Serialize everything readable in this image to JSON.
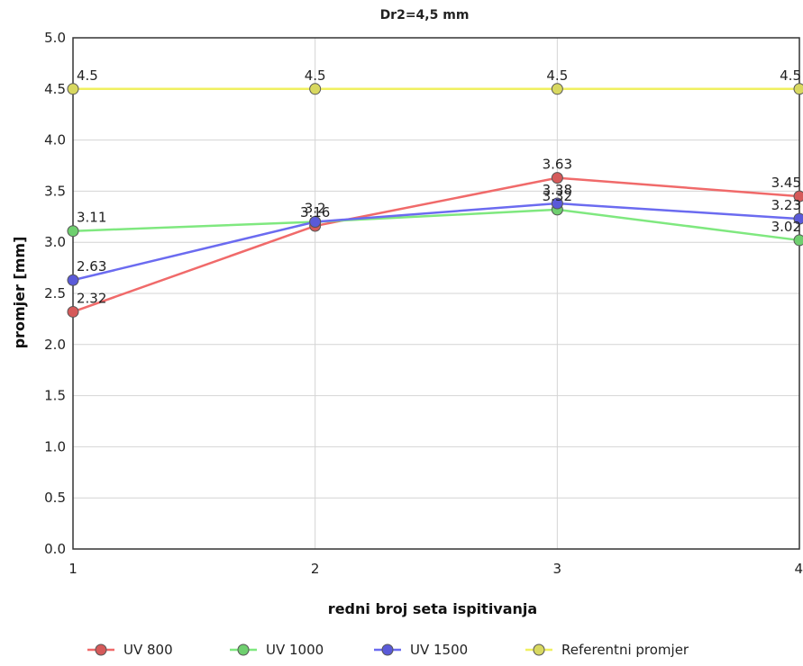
{
  "chart_data": {
    "type": "line",
    "title": "Dr2=4,5 mm",
    "xlabel": "redni broj seta ispitivanja",
    "ylabel": "promjer [mm]",
    "x": [
      1,
      2,
      3,
      4
    ],
    "x_tick_labels": [
      "1",
      "2",
      "3",
      "4"
    ],
    "ylim": [
      0,
      5
    ],
    "y_ticks": [
      "0.0",
      "0.5",
      "1.0",
      "1.5",
      "2.0",
      "2.5",
      "3.0",
      "3.5",
      "4.0",
      "4.5",
      "5.0"
    ],
    "grid": true,
    "legend_position": "bottom",
    "series": [
      {
        "name": "UV 800",
        "values": [
          2.32,
          3.16,
          3.63,
          3.45
        ],
        "labels": [
          "2.32",
          "3.16",
          "3.63",
          "3.45"
        ],
        "color": "#f06a6a",
        "marker_color": "#d55a5a"
      },
      {
        "name": "UV 1000",
        "values": [
          3.11,
          3.2,
          3.32,
          3.02
        ],
        "labels": [
          "3.11",
          "3.2",
          "3.32",
          "3.02"
        ],
        "color": "#7fe87f",
        "marker_color": "#6fcf6f"
      },
      {
        "name": "UV 1500",
        "values": [
          2.63,
          3.2,
          3.38,
          3.23
        ],
        "labels": [
          "2.63",
          "",
          "3.38",
          "3.23"
        ],
        "color": "#6b6bf0",
        "marker_color": "#5a5ad8"
      },
      {
        "name": "Referentni promjer",
        "values": [
          4.5,
          4.5,
          4.5,
          4.5
        ],
        "labels": [
          "4.5",
          "4.5",
          "4.5",
          "4.5"
        ],
        "color": "#f0f060",
        "marker_color": "#d8d860"
      }
    ]
  }
}
